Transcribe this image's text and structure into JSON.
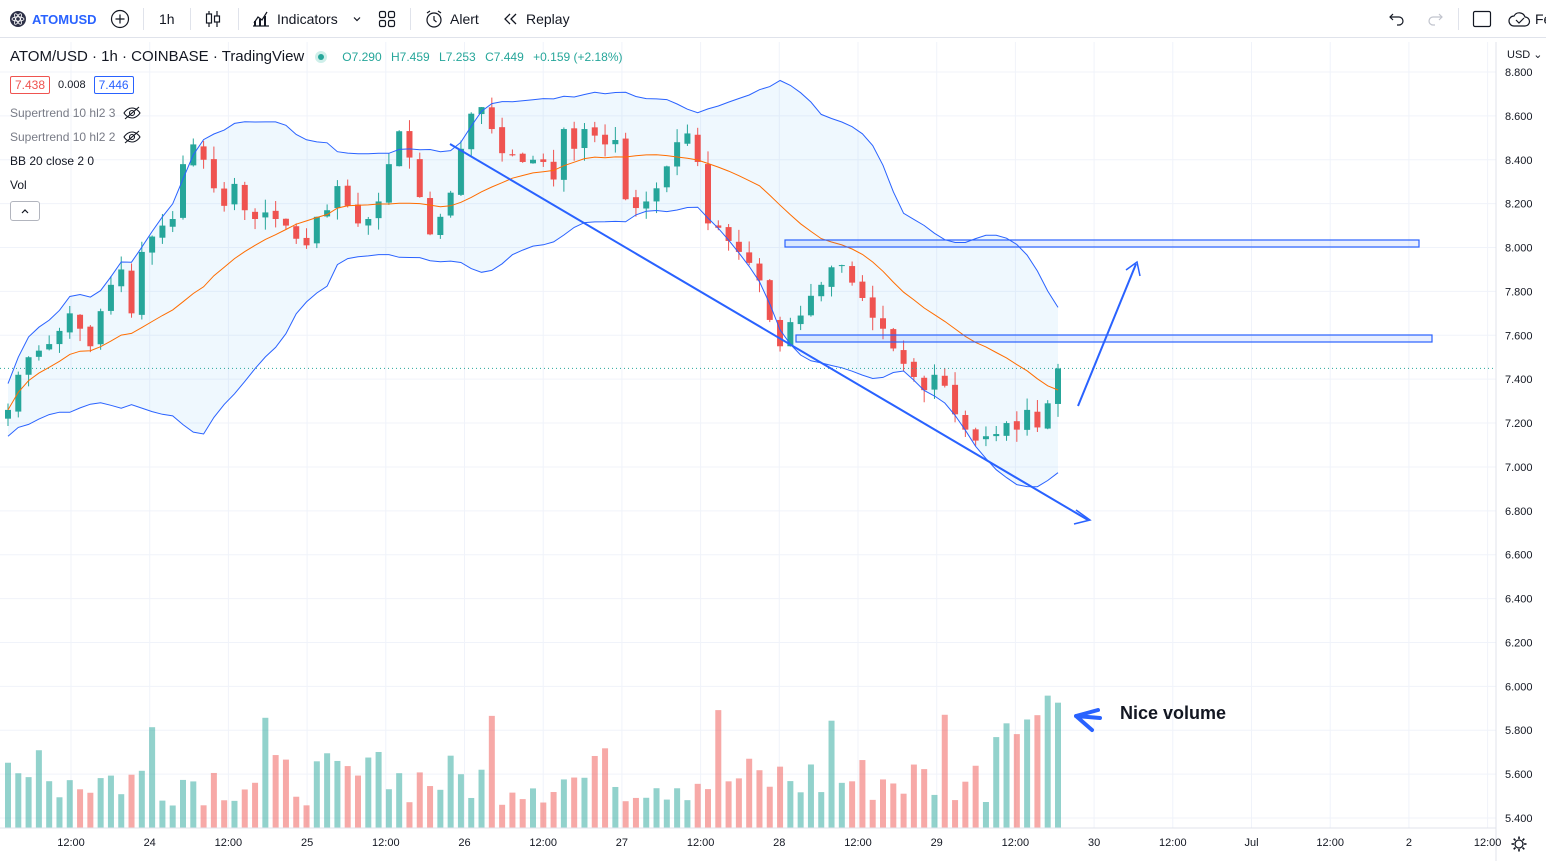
{
  "toolbar": {
    "symbol": "ATOMUSD",
    "interval": "1h",
    "indicators_label": "Indicators",
    "alert_label": "Alert",
    "replay_label": "Replay",
    "right_truncated_label": "Fe"
  },
  "legend": {
    "title": "ATOM/USD · 1h · COINBASE · TradingView",
    "open": "O7.290",
    "high": "H7.459",
    "low": "L7.253",
    "close": "C7.449",
    "change": "+0.159 (+2.18%)",
    "bid": "7.438",
    "spread": "0.008",
    "ask": "7.446",
    "indicators": [
      {
        "label": "Supertrend 10 hl2 3"
      },
      {
        "label": "Supertrend 10 hl2 2"
      },
      {
        "label": "BB 20 close 2 0"
      },
      {
        "label": "Vol"
      }
    ]
  },
  "annotation": {
    "text": "Nice volume"
  },
  "colors": {
    "up": "#26a69a",
    "down": "#ef5350",
    "bb": "#2962ff",
    "basis": "#ff6d00",
    "accent": "#2962ff"
  },
  "chart_data": {
    "type": "candlestick",
    "symbol": "ATOM/USD",
    "currency": "USD",
    "y_ticks": [
      "8.800",
      "8.600",
      "8.400",
      "8.200",
      "8.000",
      "7.800",
      "7.600",
      "7.400",
      "7.200",
      "7.000",
      "6.800",
      "6.600",
      "6.400",
      "6.200",
      "6.000",
      "5.800",
      "5.600",
      "5.400"
    ],
    "x_ticks": [
      "12:00",
      "24",
      "12:00",
      "25",
      "12:00",
      "26",
      "12:00",
      "27",
      "12:00",
      "28",
      "12:00",
      "29",
      "12:00",
      "30",
      "12:00",
      "Jul",
      "12:00",
      "2",
      "12:00"
    ],
    "last_price": 7.449,
    "closes": [
      7.26,
      7.42,
      7.5,
      7.53,
      7.56,
      7.62,
      7.7,
      7.63,
      7.55,
      7.71,
      7.83,
      7.9,
      7.7,
      7.98,
      8.05,
      8.1,
      8.13,
      8.38,
      8.47,
      8.4,
      8.27,
      8.19,
      8.29,
      8.17,
      8.13,
      8.16,
      8.13,
      8.1,
      8.04,
      8.01,
      8.14,
      8.17,
      8.28,
      8.19,
      8.11,
      8.13,
      8.21,
      8.38,
      8.53,
      8.41,
      8.23,
      8.06,
      8.14,
      8.25,
      8.45,
      8.61,
      8.64,
      8.54,
      8.43,
      8.42,
      8.39,
      8.4,
      8.39,
      8.31,
      8.54,
      8.45,
      8.54,
      8.51,
      8.47,
      8.49,
      8.22,
      8.18,
      8.21,
      8.27,
      8.37,
      8.48,
      8.52,
      8.39,
      8.11,
      8.09,
      8.03,
      7.98,
      7.93,
      7.85,
      7.67,
      7.55,
      7.66,
      7.69,
      7.78,
      7.83,
      7.91,
      7.92,
      7.84,
      7.77,
      7.68,
      7.63,
      7.54,
      7.47,
      7.41,
      7.35,
      7.42,
      7.37,
      7.24,
      7.17,
      7.12,
      7.14,
      7.15,
      7.2,
      7.17,
      7.26,
      7.18,
      7.29,
      7.449
    ],
    "volume_note": "Volume histogram pane with tall bars at the right edge"
  }
}
